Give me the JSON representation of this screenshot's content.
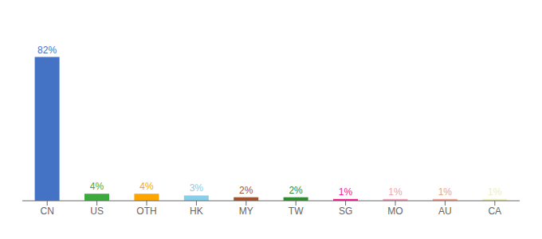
{
  "chart_data": {
    "type": "bar",
    "categories": [
      "CN",
      "US",
      "OTH",
      "HK",
      "MY",
      "TW",
      "SG",
      "MO",
      "AU",
      "CA"
    ],
    "values": [
      82,
      4,
      4,
      3,
      2,
      2,
      1,
      1,
      1,
      1
    ],
    "value_labels": [
      "82%",
      "4%",
      "4%",
      "3%",
      "2%",
      "2%",
      "1%",
      "1%",
      "1%",
      "1%"
    ],
    "colors": [
      "#4472C4",
      "#3DAA3D",
      "#FFA500",
      "#87CEEB",
      "#A0522D",
      "#2E8B2E",
      "#E91E8C",
      "#F0A0B8",
      "#F0A090",
      "#F0EEB8"
    ],
    "ylim": [
      0,
      100
    ],
    "data_labels": true,
    "tick_labels": "x",
    "grid": false
  }
}
